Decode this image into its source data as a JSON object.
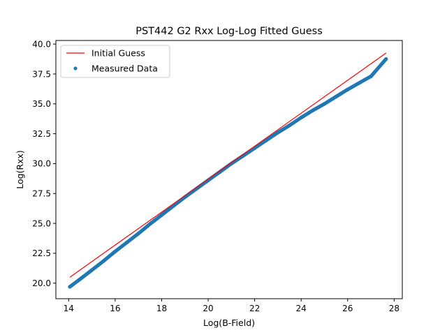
{
  "chart_data": {
    "type": "scatter",
    "title": "PST442 G2 Rxx Log-Log Fitted Guess",
    "xlabel": "Log(B-Field)",
    "ylabel": "Log(Rxx)",
    "xlim": [
      13.45,
      28.35
    ],
    "ylim": [
      18.7,
      40.3
    ],
    "xticks": [
      14,
      16,
      18,
      20,
      22,
      24,
      26,
      28
    ],
    "yticks": [
      20.0,
      22.5,
      25.0,
      27.5,
      30.0,
      32.5,
      35.0,
      37.5,
      40.0
    ],
    "xtick_labels": [
      "14",
      "16",
      "18",
      "20",
      "22",
      "24",
      "26",
      "28"
    ],
    "ytick_labels": [
      "20.0",
      "22.5",
      "25.0",
      "27.5",
      "30.0",
      "32.5",
      "35.0",
      "37.5",
      "40.0"
    ],
    "grid": false,
    "legend_position": "top-left",
    "series": [
      {
        "name": "Initial Guess",
        "kind": "line",
        "color": "#ff0000",
        "x": [
          14.05,
          27.65
        ],
        "y": [
          20.5,
          39.25
        ]
      },
      {
        "name": "Measured Data",
        "kind": "scatter",
        "color": "#1f77b4",
        "x": [
          14.05,
          14.5,
          15.0,
          15.5,
          16.0,
          16.5,
          17.0,
          17.5,
          18.0,
          18.5,
          19.0,
          19.5,
          20.0,
          20.5,
          21.0,
          21.5,
          22.0,
          22.5,
          23.0,
          23.5,
          24.0,
          24.5,
          25.0,
          25.5,
          26.0,
          26.5,
          27.0,
          27.65
        ],
        "y": [
          19.7,
          20.35,
          21.1,
          21.85,
          22.65,
          23.4,
          24.15,
          24.95,
          25.7,
          26.45,
          27.2,
          27.9,
          28.6,
          29.3,
          30.0,
          30.65,
          31.3,
          31.95,
          32.6,
          33.2,
          33.85,
          34.45,
          35.0,
          35.6,
          36.2,
          36.75,
          37.3,
          38.75
        ]
      }
    ]
  }
}
